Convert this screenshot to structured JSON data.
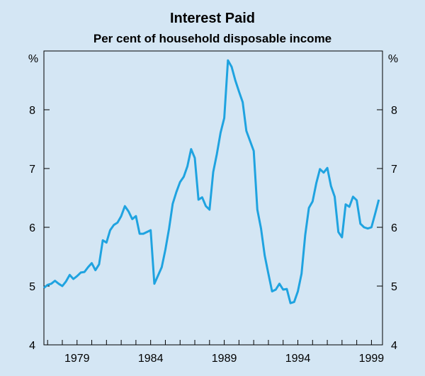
{
  "chart_data": {
    "type": "line",
    "title": "Interest Paid",
    "subtitle": "Per cent of household disposable income",
    "ylabel_left": "%",
    "ylabel_right": "%",
    "ylim": [
      4,
      9
    ],
    "yticks": [
      4,
      5,
      6,
      7,
      8
    ],
    "xlim": [
      1976.75,
      1999.75
    ],
    "xticks": [
      1979,
      1984,
      1989,
      1994,
      1999
    ],
    "xtick_labels": [
      "1979",
      "1984",
      "1989",
      "1994",
      "1999"
    ],
    "grid": false,
    "line_color": "#1fa3e0",
    "series": [
      {
        "x": [
          1976.75,
          1977,
          1977.25,
          1977.5,
          1977.75,
          1978,
          1978.25,
          1978.5,
          1978.75,
          1979,
          1979.25,
          1979.5,
          1979.75,
          1980,
          1980.25,
          1980.5,
          1980.75,
          1981,
          1981.25,
          1981.5,
          1981.75,
          1982,
          1982.25,
          1982.5,
          1982.75,
          1983,
          1983.25,
          1983.5,
          1983.75,
          1984,
          1984.25,
          1984.5,
          1984.75,
          1985,
          1985.25,
          1985.5,
          1985.75,
          1986,
          1986.25,
          1986.5,
          1986.75,
          1987,
          1987.25,
          1987.5,
          1987.75,
          1988,
          1988.25,
          1988.5,
          1988.75,
          1989,
          1989.25,
          1989.5,
          1989.75,
          1990,
          1990.25,
          1990.5,
          1990.75,
          1991,
          1991.25,
          1991.5,
          1991.75,
          1992,
          1992.25,
          1992.5,
          1992.75,
          1993,
          1993.25,
          1993.5,
          1993.75,
          1994,
          1994.25,
          1994.5,
          1994.75,
          1995,
          1995.25,
          1995.5,
          1995.75,
          1996,
          1996.25,
          1996.5,
          1996.75,
          1997,
          1997.25,
          1997.5,
          1997.75,
          1998,
          1998.25,
          1998.5,
          1998.75,
          1999,
          1999.25,
          1999.5
        ],
        "values": [
          4.97,
          5.02,
          5.04,
          5.09,
          5.04,
          5.0,
          5.08,
          5.19,
          5.12,
          5.17,
          5.23,
          5.24,
          5.32,
          5.39,
          5.27,
          5.37,
          5.78,
          5.74,
          5.95,
          6.04,
          6.08,
          6.19,
          6.36,
          6.27,
          6.14,
          6.19,
          5.89,
          5.89,
          5.92,
          5.95,
          5.04,
          5.18,
          5.32,
          5.62,
          5.98,
          6.4,
          6.6,
          6.77,
          6.86,
          7.04,
          7.33,
          7.18,
          6.47,
          6.51,
          6.36,
          6.3,
          6.94,
          7.25,
          7.61,
          7.86,
          8.84,
          8.73,
          8.5,
          8.31,
          8.13,
          7.64,
          7.47,
          7.3,
          6.3,
          5.98,
          5.52,
          5.21,
          4.91,
          4.94,
          5.04,
          4.94,
          4.95,
          4.71,
          4.73,
          4.91,
          5.21,
          5.87,
          6.33,
          6.44,
          6.75,
          6.99,
          6.93,
          7.01,
          6.7,
          6.52,
          5.92,
          5.83,
          6.39,
          6.35,
          6.52,
          6.46,
          6.06,
          6.0,
          5.98,
          6.0,
          6.23,
          6.47
        ]
      }
    ]
  }
}
